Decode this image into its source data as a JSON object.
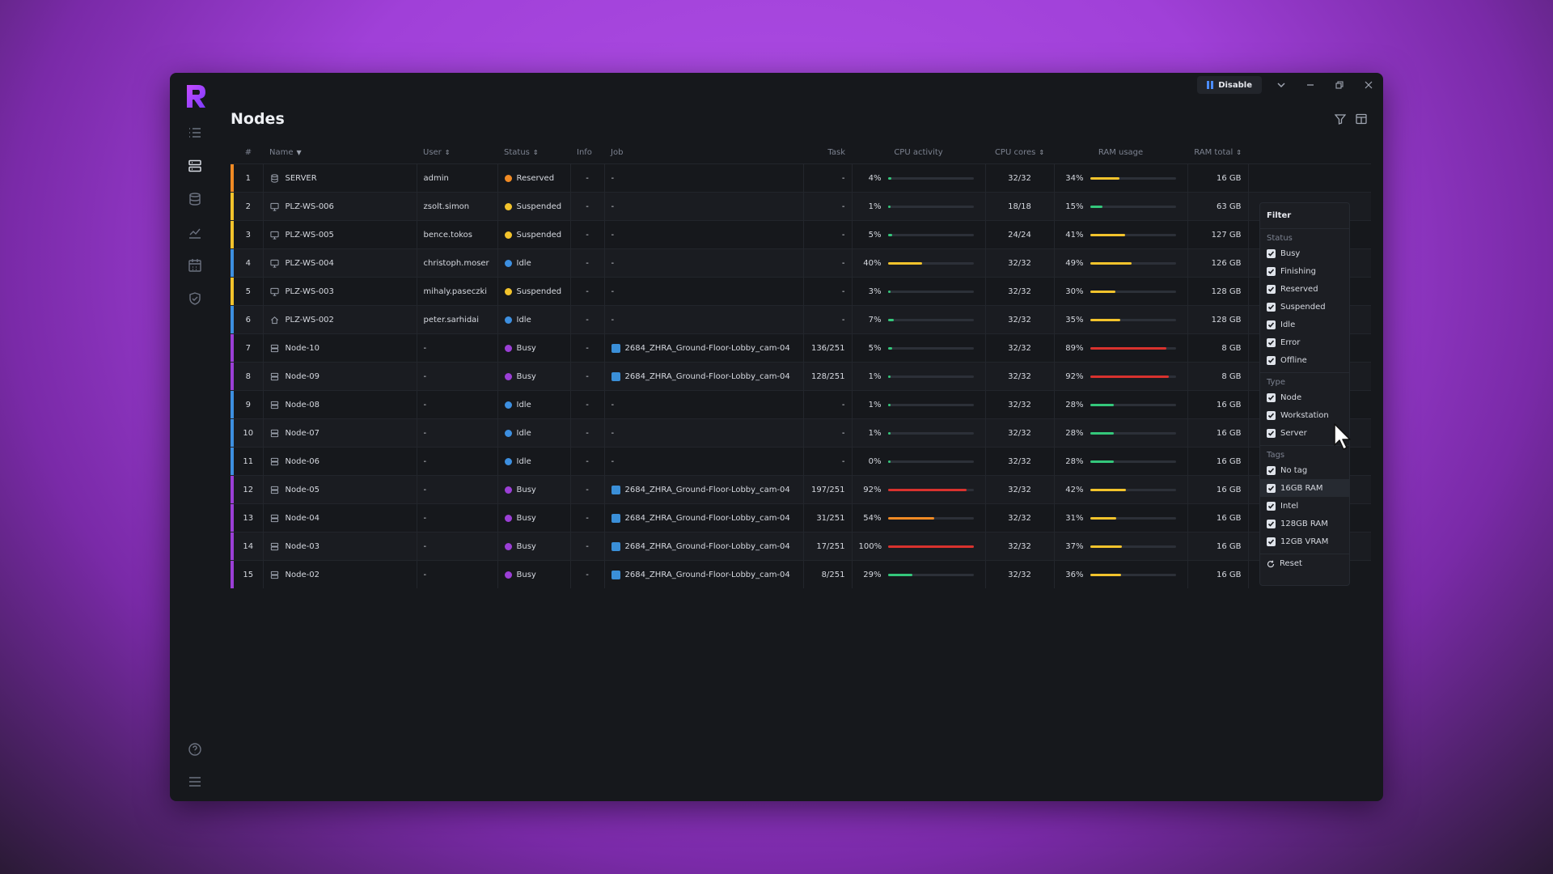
{
  "titlebar": {
    "disable_label": "Disable"
  },
  "page": {
    "title": "Nodes"
  },
  "columns": {
    "num": "#",
    "name": "Name",
    "user": "User",
    "status": "Status",
    "info": "Info",
    "job": "Job",
    "task": "Task",
    "cpu_activity": "CPU activity",
    "cpu_cores": "CPU cores",
    "ram_usage": "RAM usage",
    "ram_total": "RAM total"
  },
  "status_colors": {
    "Reserved": "#f08a24",
    "Suspended": "#f2c32c",
    "Idle": "#3d8fe0",
    "Busy": "#9b3fd6"
  },
  "rows": [
    {
      "num": "1",
      "name": "SERVER",
      "icon": "server-icon",
      "user": "admin",
      "status": "Reserved",
      "info": "-",
      "job": "-",
      "task": "-",
      "cpu": "4%",
      "cpu_v": 4,
      "cores": "32/32",
      "ram": "34%",
      "ram_v": 34,
      "ram_total": "16 GB",
      "stripe": "#f08a24"
    },
    {
      "num": "2",
      "name": "PLZ-WS-006",
      "icon": "monitor-icon",
      "user": "zsolt.simon",
      "status": "Suspended",
      "info": "-",
      "job": "-",
      "task": "-",
      "cpu": "1%",
      "cpu_v": 1,
      "cores": "18/18",
      "ram": "15%",
      "ram_v": 15,
      "ram_total": "63 GB",
      "stripe": "#f2c32c"
    },
    {
      "num": "3",
      "name": "PLZ-WS-005",
      "icon": "monitor-icon",
      "user": "bence.tokos",
      "status": "Suspended",
      "info": "-",
      "job": "-",
      "task": "-",
      "cpu": "5%",
      "cpu_v": 5,
      "cores": "24/24",
      "ram": "41%",
      "ram_v": 41,
      "ram_total": "127 GB",
      "stripe": "#f2c32c"
    },
    {
      "num": "4",
      "name": "PLZ-WS-004",
      "icon": "monitor-icon",
      "user": "christoph.moser",
      "status": "Idle",
      "info": "-",
      "job": "-",
      "task": "-",
      "cpu": "40%",
      "cpu_v": 40,
      "cores": "32/32",
      "ram": "49%",
      "ram_v": 49,
      "ram_total": "126 GB",
      "stripe": "#3d8fe0"
    },
    {
      "num": "5",
      "name": "PLZ-WS-003",
      "icon": "monitor-icon",
      "user": "mihaly.paseczki",
      "status": "Suspended",
      "info": "-",
      "job": "-",
      "task": "-",
      "cpu": "3%",
      "cpu_v": 3,
      "cores": "32/32",
      "ram": "30%",
      "ram_v": 30,
      "ram_total": "128 GB",
      "stripe": "#f2c32c"
    },
    {
      "num": "6",
      "name": "PLZ-WS-002",
      "icon": "home-icon",
      "user": "peter.sarhidai",
      "status": "Idle",
      "info": "-",
      "job": "-",
      "task": "-",
      "cpu": "7%",
      "cpu_v": 7,
      "cores": "32/32",
      "ram": "35%",
      "ram_v": 35,
      "ram_total": "128 GB",
      "stripe": "#3d8fe0"
    },
    {
      "num": "7",
      "name": "Node-10",
      "icon": "node-icon",
      "user": "-",
      "status": "Busy",
      "info": "-",
      "job": "2684_ZHRA_Ground-Floor-Lobby_cam-04",
      "task": "136/251",
      "cpu": "5%",
      "cpu_v": 5,
      "cores": "32/32",
      "ram": "89%",
      "ram_v": 89,
      "ram_total": "8 GB",
      "stripe": "#9b3fd6"
    },
    {
      "num": "8",
      "name": "Node-09",
      "icon": "node-icon",
      "user": "-",
      "status": "Busy",
      "info": "-",
      "job": "2684_ZHRA_Ground-Floor-Lobby_cam-04",
      "task": "128/251",
      "cpu": "1%",
      "cpu_v": 1,
      "cores": "32/32",
      "ram": "92%",
      "ram_v": 92,
      "ram_total": "8 GB",
      "stripe": "#9b3fd6"
    },
    {
      "num": "9",
      "name": "Node-08",
      "icon": "node-icon",
      "user": "-",
      "status": "Idle",
      "info": "-",
      "job": "-",
      "task": "-",
      "cpu": "1%",
      "cpu_v": 1,
      "cores": "32/32",
      "ram": "28%",
      "ram_v": 28,
      "ram_total": "16 GB",
      "stripe": "#3d8fe0"
    },
    {
      "num": "10",
      "name": "Node-07",
      "icon": "node-icon",
      "user": "-",
      "status": "Idle",
      "info": "-",
      "job": "-",
      "task": "-",
      "cpu": "1%",
      "cpu_v": 1,
      "cores": "32/32",
      "ram": "28%",
      "ram_v": 28,
      "ram_total": "16 GB",
      "stripe": "#3d8fe0"
    },
    {
      "num": "11",
      "name": "Node-06",
      "icon": "node-icon",
      "user": "-",
      "status": "Idle",
      "info": "-",
      "job": "-",
      "task": "-",
      "cpu": "0%",
      "cpu_v": 0,
      "cores": "32/32",
      "ram": "28%",
      "ram_v": 28,
      "ram_total": "16 GB",
      "stripe": "#3d8fe0"
    },
    {
      "num": "12",
      "name": "Node-05",
      "icon": "node-icon",
      "user": "-",
      "status": "Busy",
      "info": "-",
      "job": "2684_ZHRA_Ground-Floor-Lobby_cam-04",
      "task": "197/251",
      "cpu": "92%",
      "cpu_v": 92,
      "cores": "32/32",
      "ram": "42%",
      "ram_v": 42,
      "ram_total": "16 GB",
      "stripe": "#9b3fd6"
    },
    {
      "num": "13",
      "name": "Node-04",
      "icon": "node-icon",
      "user": "-",
      "status": "Busy",
      "info": "-",
      "job": "2684_ZHRA_Ground-Floor-Lobby_cam-04",
      "task": "31/251",
      "cpu": "54%",
      "cpu_v": 54,
      "cores": "32/32",
      "ram": "31%",
      "ram_v": 31,
      "ram_total": "16 GB",
      "stripe": "#9b3fd6"
    },
    {
      "num": "14",
      "name": "Node-03",
      "icon": "node-icon",
      "user": "-",
      "status": "Busy",
      "info": "-",
      "job": "2684_ZHRA_Ground-Floor-Lobby_cam-04",
      "task": "17/251",
      "cpu": "100%",
      "cpu_v": 100,
      "cores": "32/32",
      "ram": "37%",
      "ram_v": 37,
      "ram_total": "16 GB",
      "stripe": "#9b3fd6"
    },
    {
      "num": "15",
      "name": "Node-02",
      "icon": "node-icon",
      "user": "-",
      "status": "Busy",
      "info": "-",
      "job": "2684_ZHRA_Ground-Floor-Lobby_cam-04",
      "task": "8/251",
      "cpu": "29%",
      "cpu_v": 29,
      "cores": "32/32",
      "ram": "36%",
      "ram_v": 36,
      "ram_total": "16 GB",
      "stripe": "#9b3fd6"
    }
  ],
  "filter": {
    "title": "Filter",
    "sections": [
      {
        "label": "Status",
        "items": [
          "Busy",
          "Finishing",
          "Reserved",
          "Suspended",
          "Idle",
          "Error",
          "Offline"
        ]
      },
      {
        "label": "Type",
        "items": [
          "Node",
          "Workstation",
          "Server"
        ]
      },
      {
        "label": "Tags",
        "items": [
          "No tag",
          "16GB RAM",
          "Intel",
          "128GB RAM",
          "12GB VRAM"
        ]
      }
    ],
    "reset_label": "Reset"
  }
}
